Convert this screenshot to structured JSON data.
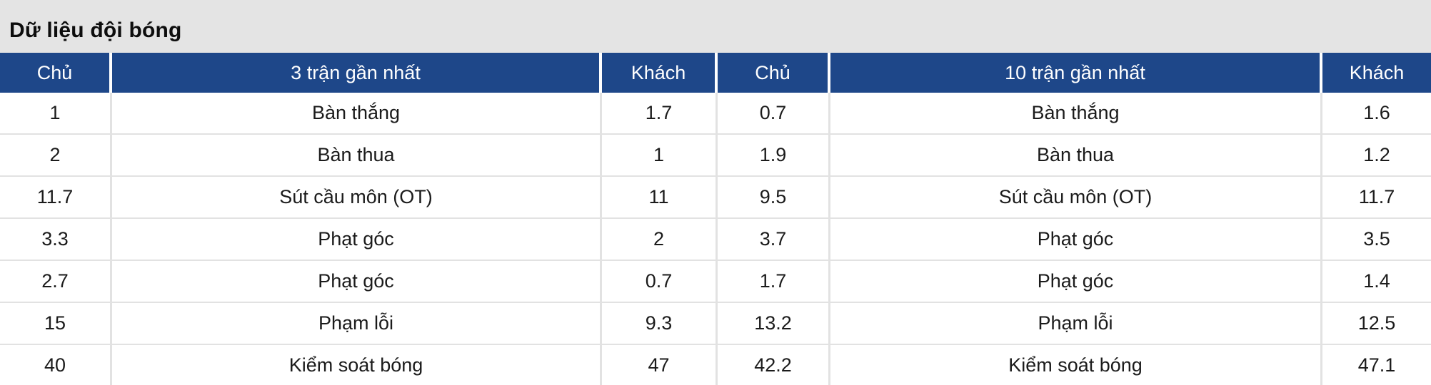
{
  "title": "Dữ liệu đội bóng",
  "colors": {
    "header_bg": "#1e4789",
    "header_text": "#ffffff",
    "title_bar_bg": "#e4e4e4",
    "row_border": "#e2e2e2",
    "body_text": "#1b1b1b"
  },
  "table": {
    "headers": [
      {
        "label": "Chủ"
      },
      {
        "label": "3 trận gần nhất"
      },
      {
        "label": "Khách"
      },
      {
        "label": "Chủ"
      },
      {
        "label": "10 trận gần nhất"
      },
      {
        "label": "Khách"
      }
    ],
    "rows": [
      {
        "home3": "1",
        "stat3": "Bàn thắng",
        "away3": "1.7",
        "home10": "0.7",
        "stat10": "Bàn thắng",
        "away10": "1.6"
      },
      {
        "home3": "2",
        "stat3": "Bàn thua",
        "away3": "1",
        "home10": "1.9",
        "stat10": "Bàn thua",
        "away10": "1.2"
      },
      {
        "home3": "11.7",
        "stat3": "Sút cầu môn (OT)",
        "away3": "11",
        "home10": "9.5",
        "stat10": "Sút cầu môn (OT)",
        "away10": "11.7"
      },
      {
        "home3": "3.3",
        "stat3": "Phạt góc",
        "away3": "2",
        "home10": "3.7",
        "stat10": "Phạt góc",
        "away10": "3.5"
      },
      {
        "home3": "2.7",
        "stat3": "Phạt góc",
        "away3": "0.7",
        "home10": "1.7",
        "stat10": "Phạt góc",
        "away10": "1.4"
      },
      {
        "home3": "15",
        "stat3": "Phạm lỗi",
        "away3": "9.3",
        "home10": "13.2",
        "stat10": "Phạm lỗi",
        "away10": "12.5"
      },
      {
        "home3": "40",
        "stat3": "Kiểm soát bóng",
        "away3": "47",
        "home10": "42.2",
        "stat10": "Kiểm soát bóng",
        "away10": "47.1"
      }
    ]
  }
}
